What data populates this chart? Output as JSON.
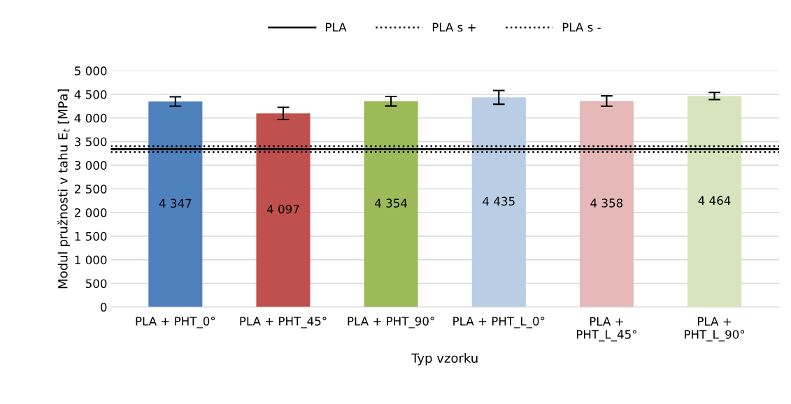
{
  "chart_data": {
    "type": "bar",
    "xlabel": "Typ vzorku",
    "ylabel": "Modul pružnosti v tahu E$_{t}$ [MPa]",
    "categories": [
      "PLA + PHT_0°",
      "PLA + PHT_45°",
      "PLA + PHT_90°",
      "PLA + PHT_L_0°",
      "PLA + PHT_L_45°",
      "PLA + PHT_L_90°"
    ],
    "values": [
      4347,
      4097,
      4354,
      4435,
      4358,
      4464
    ],
    "colors": [
      "#4f81bd",
      "#c0504d",
      "#9bbb59",
      "#b9cde5",
      "#e6b9b8",
      "#d7e4bd"
    ],
    "errors": [
      100,
      130,
      100,
      145,
      110,
      75
    ],
    "value_labels": [
      "4 347",
      "4 097",
      "4 354",
      "4 435",
      "4 358",
      "4 464"
    ],
    "ylim": [
      0,
      5000
    ],
    "yticks": [
      {
        "value": 0,
        "label": "0"
      },
      {
        "value": 500,
        "label": "500"
      },
      {
        "value": 1000,
        "label": "1 000"
      },
      {
        "value": 1500,
        "label": "1 500"
      },
      {
        "value": 2000,
        "label": "2 000"
      },
      {
        "value": 2500,
        "label": "2 500"
      },
      {
        "value": 3000,
        "label": "3 000"
      },
      {
        "value": 3500,
        "label": "3 500"
      },
      {
        "value": 4000,
        "label": "4 000"
      },
      {
        "value": 4500,
        "label": "4 500"
      },
      {
        "value": 5000,
        "label": "5 000"
      }
    ],
    "ref_lines": [
      {
        "axis": "y",
        "value": 3340,
        "label": "PLA",
        "color": "#000000",
        "line_style": "solid"
      },
      {
        "axis": "y",
        "value": 3400,
        "label": "PLA s +",
        "color": "#000000",
        "line_style": "dotted"
      },
      {
        "axis": "y",
        "value": 3280,
        "label": "PLA s -",
        "color": "#000000",
        "line_style": "dotted"
      }
    ],
    "grid": "y",
    "legend": "top"
  }
}
